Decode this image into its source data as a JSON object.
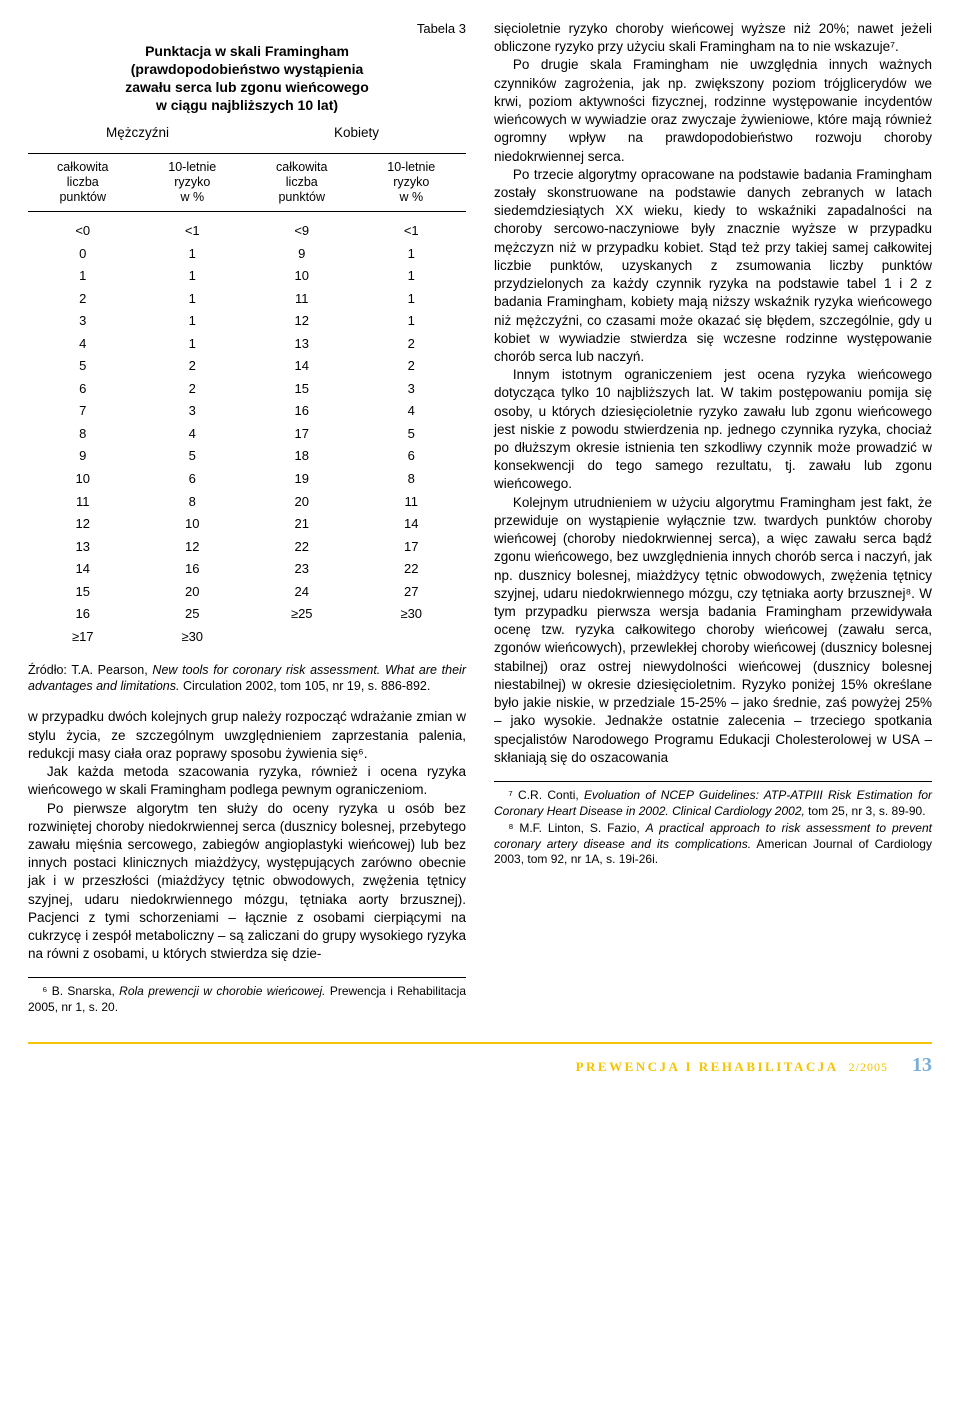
{
  "table": {
    "label": "Tabela 3",
    "title_l1": "Punktacja w skali Framingham",
    "title_l2": "(prawdopodobieństwo wystąpienia",
    "title_l3": "zawału serca lub zgonu wieńcowego",
    "title_l4": "w ciągu najbliższych 10 lat)",
    "gender_m": "Mężczyźni",
    "gender_k": "Kobiety",
    "h1": "całkowita\nliczba\npunktów",
    "h2": "10-letnie\nryzyko\nw %",
    "h3": "całkowita\nliczba\npunktów",
    "h4": "10-letnie\nryzyko\nw %",
    "rows": [
      [
        "<0",
        "<1",
        "<9",
        "<1"
      ],
      [
        "0",
        "1",
        "9",
        "1"
      ],
      [
        "1",
        "1",
        "10",
        "1"
      ],
      [
        "2",
        "1",
        "11",
        "1"
      ],
      [
        "3",
        "1",
        "12",
        "1"
      ],
      [
        "4",
        "1",
        "13",
        "2"
      ],
      [
        "5",
        "2",
        "14",
        "2"
      ],
      [
        "6",
        "2",
        "15",
        "3"
      ],
      [
        "7",
        "3",
        "16",
        "4"
      ],
      [
        "8",
        "4",
        "17",
        "5"
      ],
      [
        "9",
        "5",
        "18",
        "6"
      ],
      [
        "10",
        "6",
        "19",
        "8"
      ],
      [
        "11",
        "8",
        "20",
        "11"
      ],
      [
        "12",
        "10",
        "21",
        "14"
      ],
      [
        "13",
        "12",
        "22",
        "17"
      ],
      [
        "14",
        "16",
        "23",
        "22"
      ],
      [
        "15",
        "20",
        "24",
        "27"
      ],
      [
        "16",
        "25",
        "≥25",
        "≥30"
      ],
      [
        "≥17",
        "≥30",
        "",
        ""
      ]
    ],
    "source_a": "Źródło: T.A. Pearson, ",
    "source_i": "New tools for coronary risk assessment. What are their advantages and limitations.",
    "source_b": " Circulation 2002, tom 105, nr 19, s. 886-892."
  },
  "left": {
    "p1": "w przypadku dwóch kolejnych grup należy rozpocząć wdrażanie zmian w stylu życia, ze szczególnym uwzględnieniem zaprzestania palenia, redukcji masy ciała oraz poprawy sposobu żywienia się⁶.",
    "p2": "Jak każda metoda szacowania ryzyka, również i ocena ryzyka wieńcowego w skali Framingham podlega pewnym ograniczeniom.",
    "p3": "Po pierwsze algorytm ten służy do oceny ryzyka u osób bez rozwiniętej choroby niedokrwiennej serca (dusznicy bolesnej, przebytego zawału mięśnia sercowego, zabiegów angioplastyki wieńcowej) lub bez innych postaci klinicznych miażdżycy, występujących zarówno obecnie jak i w przeszłości (miażdżycy tętnic obwodowych, zwężenia tętnicy szyjnej, udaru niedokrwiennego mózgu, tętniaka aorty brzusznej). Pacjenci z tymi schorzeniami – łącznie z osobami cierpiącymi na cukrzycę i zespół metaboliczny – są zaliczani do grupy wysokiego ryzyka na równi z osobami, u których stwierdza się dzie-"
  },
  "left_fn": {
    "n": "⁶ B. Snarska, ",
    "i": "Rola prewencji w chorobie wieńcowej.",
    "r": " Prewencja i Rehabilitacja 2005, nr 1, s. 20."
  },
  "right": {
    "p1": "sięcioletnie ryzyko choroby wieńcowej wyższe niż 20%; nawet jeżeli obliczone ryzyko przy użyciu skali Framingham na to nie wskazuje⁷.",
    "p2": "Po drugie skala Framingham nie uwzględnia innych ważnych czynników zagrożenia, jak np. zwiększony poziom trójglicerydów we krwi, poziom aktywności fizycznej, rodzinne występowanie incydentów wieńcowych w wywiadzie oraz zwyczaje żywieniowe, które mają również ogromny wpływ na prawdopodobieństwo rozwoju choroby niedokrwiennej serca.",
    "p3": "Po trzecie algorytmy opracowane na podstawie badania Framingham zostały skonstruowane na podstawie danych zebranych w latach siedemdziesiątych XX wieku, kiedy to wskaźniki zapadalności na choroby sercowo-naczyniowe były znacznie wyższe w przypadku mężczyzn niż w przypadku kobiet. Stąd też przy takiej samej całkowitej liczbie punktów, uzyskanych z zsumowania liczby punktów przydzielonych za każdy czynnik ryzyka na podstawie tabel 1 i 2 z badania Framingham, kobiety mają niższy wskaźnik ryzyka wieńcowego niż mężczyźni, co czasami może okazać się błędem, szczególnie, gdy u kobiet w wywiadzie stwierdza się wczesne rodzinne występowanie chorób serca lub naczyń.",
    "p4": "Innym istotnym ograniczeniem jest ocena ryzyka wieńcowego dotycząca tylko 10 najbliższych lat. W takim postępowaniu pomija się osoby, u których dziesięcioletnie ryzyko zawału lub zgonu wieńcowego jest niskie z powodu stwierdzenia np. jednego czynnika ryzyka, chociaż po dłuższym okresie istnienia ten szkodliwy czynnik może prowadzić w konsekwencji do tego samego rezultatu, tj. zawału lub zgonu wieńcowego.",
    "p5": "Kolejnym utrudnieniem w użyciu algorytmu Framingham jest fakt, że przewiduje on wystąpienie wyłącznie tzw. twardych punktów choroby wieńcowej (choroby niedokrwiennej serca), a więc zawału serca bądź zgonu wieńcowego, bez uwzględnienia innych chorób serca i naczyń, jak np. dusznicy bolesnej, miażdżycy tętnic obwodowych, zwężenia tętnicy szyjnej, udaru niedokrwiennego mózgu, czy tętniaka aorty brzusznej⁸. W tym przypadku pierwsza wersja badania Framingham przewidywała ocenę tzw. ryzyka całkowitego choroby wieńcowej (zawału serca, zgonów wieńcowych), przewlekłej choroby wieńcowej (dusznicy bolesnej stabilnej) oraz ostrej niewydolności wieńcowej (dusznicy bolesnej niestabilnej) w okresie dziesięcioletnim. Ryzyko poniżej 15% określane było jakie niskie, w przedziale 15-25% – jako średnie, zaś powyżej 25% – jako wysokie. Jednakże ostatnie zalecenia – trzeciego spotkania specjalistów Narodowego Programu Edukacji Cholesterolowej w USA – skłaniają się do oszacowania"
  },
  "right_fn": {
    "a7a": "⁷ C.R. Conti, ",
    "a7i": "Evoluation of NCEP Guidelines: ATP-ATPIII Risk Estimation for Coronary Heart Disease in 2002. Clinical Cardiology 2002,",
    "a7r": " tom 25, nr 3, s. 89-90.",
    "a8a": "⁸ M.F. Linton, S. Fazio, ",
    "a8i": "A practical approach to risk assessment to prevent coronary artery disease and its complications.",
    "a8r": " American Journal of Cardiology 2003, tom 92, nr 1A, s. 19i-26i."
  },
  "footer": {
    "title": "PREWENCJA I REHABILITACJA",
    "issue": "2/2005",
    "page": "13"
  },
  "colors": {
    "accent": "#f4c400",
    "pagecol": "#7aaed6",
    "text": "#000000",
    "bg": "#ffffff"
  }
}
